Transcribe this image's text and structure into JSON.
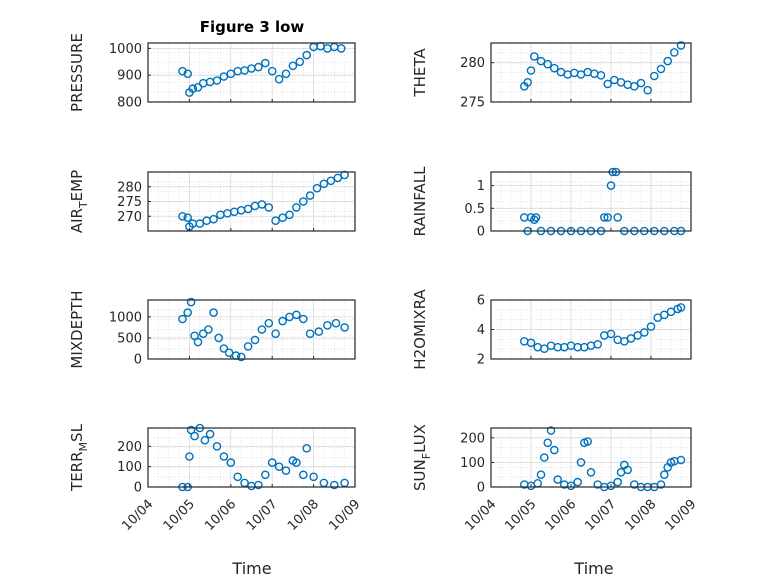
{
  "figure": {
    "title": "Figure 3 low",
    "x_label": "Time"
  },
  "colors": {
    "marker": "#0072BD",
    "axis": "#262626",
    "grid": "#dcdcdc"
  },
  "x_ticks": [
    "10/04",
    "10/05",
    "10/06",
    "10/07",
    "10/08",
    "10/09"
  ],
  "chart_data": [
    {
      "type": "scatter",
      "title": "Figure 3 low",
      "ylabel": "PRESSURE",
      "ylim": [
        800,
        1020
      ],
      "yticks": [
        "1000",
        "900",
        "800"
      ],
      "series": [
        {
          "x": [
            "10/04 20:00",
            "10/04 23:00",
            "10/05 00:00",
            "10/05 02:00",
            "10/05 05:00",
            "10/05 08:00",
            "10/05 12:00",
            "10/05 16:00",
            "10/05 20:00",
            "10/06 00:00",
            "10/06 04:00",
            "10/06 08:00",
            "10/06 12:00",
            "10/06 16:00",
            "10/06 20:00",
            "10/07 00:00",
            "10/07 04:00",
            "10/07 08:00",
            "10/07 12:00",
            "10/07 16:00",
            "10/07 20:00",
            "10/08 00:00",
            "10/08 04:00",
            "10/08 08:00",
            "10/08 12:00",
            "10/08 16:00"
          ],
          "y": [
            915,
            905,
            835,
            850,
            855,
            870,
            875,
            880,
            895,
            905,
            915,
            918,
            925,
            930,
            945,
            915,
            885,
            905,
            935,
            950,
            975,
            1005,
            1008,
            1000,
            1005,
            1000
          ]
        }
      ]
    },
    {
      "type": "scatter",
      "ylabel": "THETA",
      "ylim": [
        275,
        282.5
      ],
      "yticks": [
        "280",
        "275"
      ],
      "series": [
        {
          "x": [
            "10/04 20:00",
            "10/04 22:00",
            "10/05 00:00",
            "10/05 02:00",
            "10/05 06:00",
            "10/05 10:00",
            "10/05 14:00",
            "10/05 18:00",
            "10/05 22:00",
            "10/06 02:00",
            "10/06 06:00",
            "10/06 10:00",
            "10/06 14:00",
            "10/06 18:00",
            "10/06 22:00",
            "10/07 02:00",
            "10/07 06:00",
            "10/07 10:00",
            "10/07 14:00",
            "10/07 18:00",
            "10/07 22:00",
            "10/08 02:00",
            "10/08 06:00",
            "10/08 10:00",
            "10/08 14:00",
            "10/08 18:00"
          ],
          "y": [
            277.0,
            277.5,
            279.0,
            280.8,
            280.2,
            279.8,
            279.3,
            278.8,
            278.5,
            278.7,
            278.5,
            278.8,
            278.6,
            278.4,
            277.3,
            277.8,
            277.5,
            277.2,
            277.0,
            277.4,
            276.5,
            278.3,
            279.2,
            280.2,
            281.3,
            282.2
          ]
        }
      ]
    },
    {
      "type": "scatter",
      "ylabel": "AIR_TEMP",
      "ylim": [
        265,
        285
      ],
      "yticks": [
        "280",
        "275",
        "270"
      ],
      "series": [
        {
          "x": [
            "10/04 20:00",
            "10/04 23:00",
            "10/05 00:00",
            "10/05 02:00",
            "10/05 06:00",
            "10/05 10:00",
            "10/05 14:00",
            "10/05 18:00",
            "10/05 22:00",
            "10/06 02:00",
            "10/06 06:00",
            "10/06 10:00",
            "10/06 14:00",
            "10/06 18:00",
            "10/06 22:00",
            "10/07 02:00",
            "10/07 06:00",
            "10/07 10:00",
            "10/07 14:00",
            "10/07 18:00",
            "10/07 22:00",
            "10/08 02:00",
            "10/08 06:00",
            "10/08 10:00",
            "10/08 14:00",
            "10/08 18:00"
          ],
          "y": [
            270.0,
            269.5,
            266.5,
            267.5,
            267.5,
            268.5,
            269.0,
            270.5,
            271.0,
            271.5,
            272.0,
            272.5,
            273.5,
            274.0,
            273.0,
            268.5,
            269.5,
            270.5,
            273.0,
            275.0,
            277.0,
            279.5,
            281.0,
            282.0,
            283.0,
            284.0
          ]
        }
      ]
    },
    {
      "type": "scatter",
      "ylabel": "RAINFALL",
      "ylim": [
        0,
        1.3
      ],
      "yticks": [
        "1",
        "0.5",
        "0"
      ],
      "series": [
        {
          "x": [
            "10/04 20:00",
            "10/04 22:00",
            "10/05 00:00",
            "10/05 02:00",
            "10/05 03:00",
            "10/05 06:00",
            "10/05 12:00",
            "10/05 18:00",
            "10/06 00:00",
            "10/06 06:00",
            "10/06 12:00",
            "10/06 18:00",
            "10/06 20:00",
            "10/06 22:00",
            "10/07 00:00",
            "10/07 01:00",
            "10/07 03:00",
            "10/07 04:00",
            "10/07 08:00",
            "10/07 14:00",
            "10/07 20:00",
            "10/08 02:00",
            "10/08 08:00",
            "10/08 14:00",
            "10/08 18:00"
          ],
          "y": [
            0.3,
            0,
            0.3,
            0.25,
            0.3,
            0,
            0,
            0,
            0,
            0,
            0,
            0,
            0.3,
            0.3,
            1.0,
            1.3,
            1.3,
            0.3,
            0,
            0,
            0,
            0,
            0,
            0,
            0
          ]
        }
      ]
    },
    {
      "type": "scatter",
      "ylabel": "MIXDEPTH",
      "ylim": [
        0,
        1400
      ],
      "yticks": [
        "1000",
        "500",
        "0"
      ],
      "series": [
        {
          "x": [
            "10/04 20:00",
            "10/04 23:00",
            "10/05 01:00",
            "10/05 03:00",
            "10/05 05:00",
            "10/05 08:00",
            "10/05 11:00",
            "10/05 14:00",
            "10/05 17:00",
            "10/05 20:00",
            "10/05 23:00",
            "10/06 03:00",
            "10/06 06:00",
            "10/06 10:00",
            "10/06 14:00",
            "10/06 18:00",
            "10/06 22:00",
            "10/07 02:00",
            "10/07 06:00",
            "10/07 10:00",
            "10/07 14:00",
            "10/07 18:00",
            "10/07 22:00",
            "10/08 03:00",
            "10/08 08:00",
            "10/08 13:00",
            "10/08 18:00"
          ],
          "y": [
            950,
            1100,
            1350,
            550,
            400,
            600,
            700,
            1100,
            500,
            250,
            150,
            80,
            50,
            300,
            450,
            700,
            850,
            600,
            900,
            1000,
            1050,
            950,
            600,
            650,
            800,
            850,
            750
          ]
        }
      ]
    },
    {
      "type": "scatter",
      "ylabel": "H2OMIXRA",
      "ylim": [
        2,
        6
      ],
      "yticks": [
        "6",
        "4",
        "2"
      ],
      "series": [
        {
          "x": [
            "10/04 20:00",
            "10/05 00:00",
            "10/05 04:00",
            "10/05 08:00",
            "10/05 12:00",
            "10/05 16:00",
            "10/05 20:00",
            "10/06 00:00",
            "10/06 04:00",
            "10/06 08:00",
            "10/06 12:00",
            "10/06 16:00",
            "10/06 20:00",
            "10/07 00:00",
            "10/07 04:00",
            "10/07 08:00",
            "10/07 12:00",
            "10/07 16:00",
            "10/07 20:00",
            "10/08 00:00",
            "10/08 04:00",
            "10/08 08:00",
            "10/08 12:00",
            "10/08 16:00",
            "10/08 18:00"
          ],
          "y": [
            3.2,
            3.1,
            2.8,
            2.7,
            2.9,
            2.8,
            2.8,
            2.9,
            2.8,
            2.8,
            2.9,
            3.0,
            3.6,
            3.7,
            3.3,
            3.2,
            3.4,
            3.6,
            3.8,
            4.2,
            4.8,
            5.0,
            5.2,
            5.4,
            5.5
          ]
        }
      ]
    },
    {
      "type": "scatter",
      "ylabel": "TERR_MSL",
      "ylim": [
        0,
        290
      ],
      "yticks": [
        "200",
        "100",
        "0"
      ],
      "series": [
        {
          "x": [
            "10/04 20:00",
            "10/04 23:00",
            "10/05 00:00",
            "10/05 01:00",
            "10/05 03:00",
            "10/05 06:00",
            "10/05 09:00",
            "10/05 12:00",
            "10/05 16:00",
            "10/05 20:00",
            "10/06 00:00",
            "10/06 04:00",
            "10/06 08:00",
            "10/06 12:00",
            "10/06 16:00",
            "10/06 20:00",
            "10/07 00:00",
            "10/07 04:00",
            "10/07 08:00",
            "10/07 12:00",
            "10/07 14:00",
            "10/07 18:00",
            "10/07 20:00",
            "10/08 00:00",
            "10/08 06:00",
            "10/08 12:00",
            "10/08 18:00"
          ],
          "y": [
            0,
            0,
            150,
            280,
            250,
            290,
            230,
            260,
            200,
            150,
            120,
            50,
            20,
            5,
            10,
            60,
            120,
            100,
            80,
            130,
            120,
            60,
            190,
            50,
            20,
            10,
            20
          ]
        }
      ]
    },
    {
      "type": "scatter",
      "ylabel": "SUN_FLUX",
      "ylim": [
        0,
        240
      ],
      "yticks": [
        "200",
        "100",
        "0"
      ],
      "series": [
        {
          "x": [
            "10/04 20:00",
            "10/05 00:00",
            "10/05 04:00",
            "10/05 06:00",
            "10/05 08:00",
            "10/05 10:00",
            "10/05 12:00",
            "10/05 14:00",
            "10/05 16:00",
            "10/05 20:00",
            "10/06 00:00",
            "10/06 04:00",
            "10/06 06:00",
            "10/06 08:00",
            "10/06 10:00",
            "10/06 12:00",
            "10/06 16:00",
            "10/06 20:00",
            "10/07 00:00",
            "10/07 04:00",
            "10/07 06:00",
            "10/07 08:00",
            "10/07 10:00",
            "10/07 14:00",
            "10/07 18:00",
            "10/07 22:00",
            "10/08 02:00",
            "10/08 06:00",
            "10/08 08:00",
            "10/08 10:00",
            "10/08 12:00",
            "10/08 14:00",
            "10/08 18:00"
          ],
          "y": [
            10,
            5,
            15,
            50,
            120,
            180,
            230,
            150,
            30,
            10,
            5,
            20,
            100,
            180,
            185,
            60,
            10,
            0,
            5,
            20,
            60,
            90,
            70,
            10,
            0,
            0,
            0,
            10,
            50,
            80,
            100,
            105,
            110
          ]
        }
      ]
    }
  ]
}
